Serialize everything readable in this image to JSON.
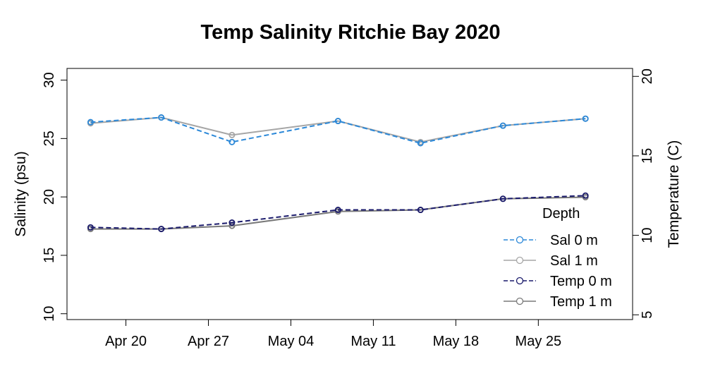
{
  "chart_data": {
    "type": "line",
    "title": "Temp Salinity Ritchie Bay 2020",
    "ylabel": "Salinity (psu)",
    "y2label": "Temperature (C)",
    "xlabel": "",
    "x_axis_kind": "date",
    "xlim": [
      "2020-04-15",
      "2020-06-02"
    ],
    "ylim": [
      9.5,
      31
    ],
    "y2lim": [
      4.7,
      20.5
    ],
    "yticks": [
      10,
      15,
      20,
      25,
      30
    ],
    "y2ticks": [
      5,
      10,
      15,
      20
    ],
    "xticks": [
      {
        "date": "2020-04-20",
        "label": "Apr 20"
      },
      {
        "date": "2020-04-27",
        "label": "Apr 27"
      },
      {
        "date": "2020-05-04",
        "label": "May 04"
      },
      {
        "date": "2020-05-11",
        "label": "May 11"
      },
      {
        "date": "2020-05-18",
        "label": "May 18"
      },
      {
        "date": "2020-05-25",
        "label": "May 25"
      }
    ],
    "legend_title": "Depth",
    "legend_position": "bottom-right",
    "grid": false,
    "series": [
      {
        "name": "Sal 0 m",
        "axis": "left",
        "color": "#2b88d8",
        "dash": true,
        "x": [
          "2020-04-17",
          "2020-04-23",
          "2020-04-29",
          "2020-05-08",
          "2020-05-15",
          "2020-05-22",
          "2020-05-29"
        ],
        "y": [
          26.4,
          26.8,
          24.7,
          26.5,
          24.6,
          26.1,
          26.7
        ]
      },
      {
        "name": "Sal 1 m",
        "axis": "left",
        "color": "#a6a6a6",
        "dash": false,
        "x": [
          "2020-04-17",
          "2020-04-23",
          "2020-04-29",
          "2020-05-08",
          "2020-05-15",
          "2020-05-22",
          "2020-05-29"
        ],
        "y": [
          26.3,
          26.8,
          25.3,
          26.5,
          24.7,
          26.1,
          26.7
        ]
      },
      {
        "name": "Temp 0 m",
        "axis": "right",
        "color": "#1a1a6b",
        "dash": true,
        "x": [
          "2020-04-17",
          "2020-04-23",
          "2020-04-29",
          "2020-05-08",
          "2020-05-15",
          "2020-05-22",
          "2020-05-29"
        ],
        "y": [
          10.5,
          10.4,
          10.8,
          11.6,
          11.6,
          12.3,
          12.5
        ]
      },
      {
        "name": "Temp 1 m",
        "axis": "right",
        "color": "#7a7a7a",
        "dash": false,
        "x": [
          "2020-04-17",
          "2020-04-23",
          "2020-04-29",
          "2020-05-08",
          "2020-05-15",
          "2020-05-22",
          "2020-05-29"
        ],
        "y": [
          10.4,
          10.4,
          10.6,
          11.5,
          11.6,
          12.3,
          12.4
        ]
      }
    ]
  }
}
